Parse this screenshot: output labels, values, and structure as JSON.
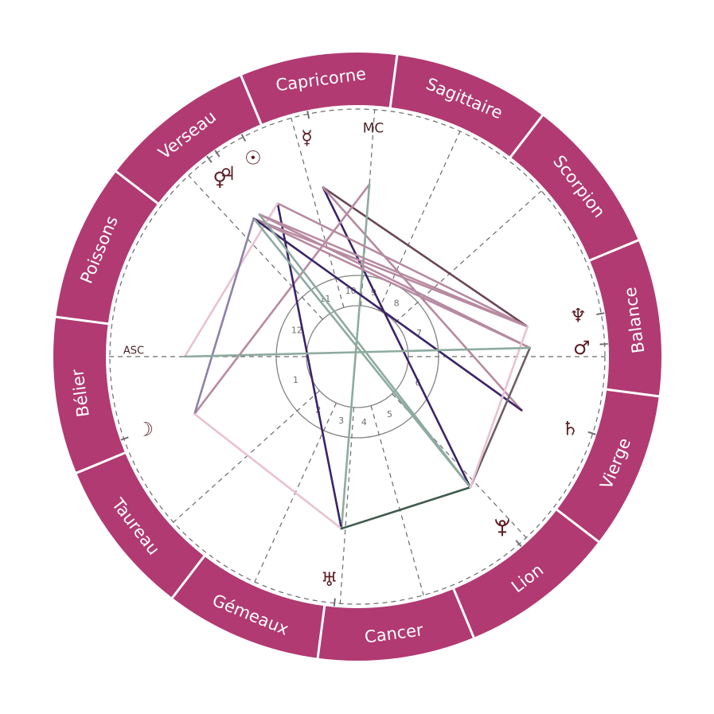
{
  "chart": {
    "type": "natal-chart-wheel",
    "zodiac": {
      "start_deg": 172.5,
      "signs": [
        {
          "name": "Bélier"
        },
        {
          "name": "Taureau"
        },
        {
          "name": "Gémeaux"
        },
        {
          "name": "Cancer"
        },
        {
          "name": "Lion"
        },
        {
          "name": "Vierge"
        },
        {
          "name": "Balance"
        },
        {
          "name": "Scorpion"
        },
        {
          "name": "Sagittaire"
        },
        {
          "name": "Capricorne"
        },
        {
          "name": "Verseau"
        },
        {
          "name": "Poissons"
        }
      ]
    },
    "angles": {
      "asc": {
        "label": "ASC",
        "deg": 180
      },
      "mc": {
        "label": "MC",
        "deg": 86
      }
    },
    "houses": [
      {
        "number": "1",
        "cusp_deg": 180
      },
      {
        "number": "2",
        "cusp_deg": 222
      },
      {
        "number": "3",
        "cusp_deg": 245.5
      },
      {
        "number": "4",
        "cusp_deg": 266
      },
      {
        "number": "5",
        "cusp_deg": 285.5
      },
      {
        "number": "6",
        "cusp_deg": 313
      },
      {
        "number": "7",
        "cusp_deg": 0
      },
      {
        "number": "8",
        "cusp_deg": 42
      },
      {
        "number": "9",
        "cusp_deg": 65.5
      },
      {
        "number": "10",
        "cusp_deg": 86
      },
      {
        "number": "11",
        "cusp_deg": 105.5
      },
      {
        "number": "12",
        "cusp_deg": 133
      }
    ],
    "planets": [
      {
        "id": "mercury",
        "icon": "mercury-icon",
        "glyph": "☿",
        "deg": 101.5,
        "glyph_deg": 103.0
      },
      {
        "id": "sun",
        "icon": "sun-icon",
        "glyph": "☉",
        "deg": 117.5,
        "glyph_deg": 117.7
      },
      {
        "id": "jupiter",
        "icon": "jupiter-icon",
        "glyph": "♃",
        "deg": 124.6,
        "glyph_deg": 125.4
      },
      {
        "id": "venus",
        "icon": "venus-icon",
        "glyph": "♀",
        "deg": 126.9,
        "glyph_deg": 127.8
      },
      {
        "id": "moon",
        "icon": "moon-icon",
        "glyph": "☽",
        "deg": 199.4,
        "glyph_deg": 198.9
      },
      {
        "id": "uranus",
        "icon": "uranus-icon",
        "glyph": "♅",
        "deg": 264.7,
        "glyph_deg": 262.8
      },
      {
        "id": "pluto",
        "icon": "pluto-icon",
        "glyph": "♇",
        "deg": 310.8,
        "glyph_deg": 310.2
      },
      {
        "id": "saturn",
        "icon": "saturn-icon",
        "glyph": "♄",
        "deg": 341.9,
        "glyph_deg": 341.3
      },
      {
        "id": "mars",
        "icon": "mars-icon",
        "glyph": "♂",
        "deg": 2.9,
        "glyph_deg": 2.2
      },
      {
        "id": "neptune",
        "icon": "neptune-icon",
        "glyph": "♆",
        "deg": 10.0,
        "glyph_deg": 10.5
      }
    ],
    "aspects": [
      {
        "from": "mercury",
        "to": "neptune",
        "color": "#6b4657"
      },
      {
        "from": "mercury",
        "to": "pluto",
        "color": "#3a2468"
      },
      {
        "from": "mercury",
        "to": "saturn",
        "color": "#b78aa0"
      },
      {
        "from": "mc",
        "to": "moon",
        "color": "#b78aa0"
      },
      {
        "from": "mc",
        "to": "uranus",
        "color": "#8eab9f"
      },
      {
        "from": "sun",
        "to": "uranus",
        "color": "#3a2468"
      },
      {
        "from": "sun",
        "to": "neptune",
        "color": "#b78aa0"
      },
      {
        "from": "asc",
        "to": "sun",
        "color": "#e9c2d2"
      },
      {
        "from": "venus",
        "to": "neptune",
        "color": "#b78aa0"
      },
      {
        "from": "jupiter",
        "to": "neptune",
        "color": "#b78aa0"
      },
      {
        "from": "venus",
        "to": "mars",
        "color": "#b78aa0"
      },
      {
        "from": "jupiter",
        "to": "mars",
        "color": "#b78aa0"
      },
      {
        "from": "venus",
        "to": "saturn",
        "color": "#3a2468"
      },
      {
        "from": "venus",
        "to": "pluto",
        "color": "#8eab9f"
      },
      {
        "from": "jupiter",
        "to": "pluto",
        "color": "#8eab9f"
      },
      {
        "from": "moon",
        "to": "venus",
        "color": "#8d80a8"
      },
      {
        "from": "moon",
        "to": "uranus",
        "color": "#e9c2d2"
      },
      {
        "from": "uranus",
        "to": "pluto",
        "color": "#3f5b4d"
      },
      {
        "from": "pluto",
        "to": "mars",
        "color": "#6e5f67"
      },
      {
        "from": "pluto",
        "to": "neptune",
        "color": "#e9c2d2"
      },
      {
        "from": "asc",
        "to": "mars",
        "color": "#8eab9f"
      }
    ]
  },
  "colors": {
    "ring": "#b13a72",
    "ring_divider": "#ffffff",
    "zodiac_text": "#ffffff",
    "house_line": "#6a6a6a",
    "inner_circles": "#858585",
    "glyph": "#5a1e24"
  }
}
